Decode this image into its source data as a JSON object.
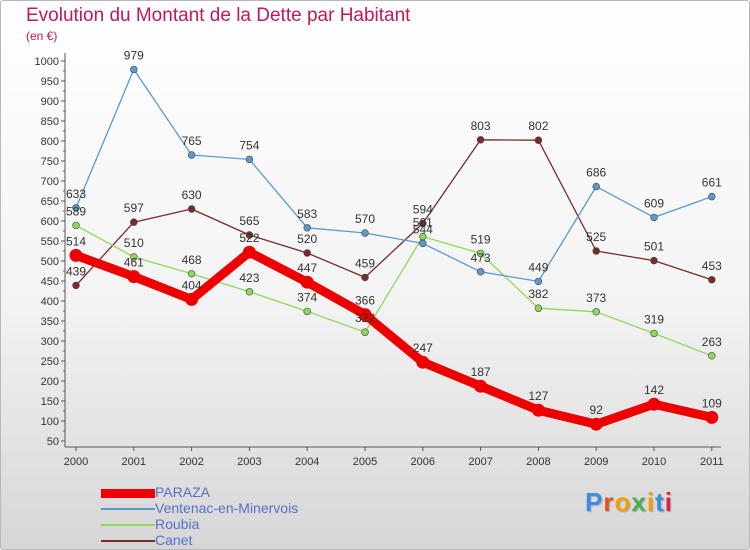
{
  "title": "Evolution du Montant de la Dette par Habitant",
  "unit": "(en €)",
  "logo": "Proxiti",
  "chart_data": {
    "type": "line",
    "title": "Evolution du Montant de la Dette par Habitant",
    "ylabel": "(en €)",
    "ylim": [
      50,
      1000
    ],
    "ytick_step": 50,
    "grid": false,
    "legend_position": "bottom-left",
    "x": [
      "2000",
      "2001",
      "2002",
      "2003",
      "2004",
      "2005",
      "2006",
      "2007",
      "2008",
      "2009",
      "2010",
      "2011"
    ],
    "series": [
      {
        "name": "PARAZA",
        "color": "#ee0000",
        "values": [
          514,
          461,
          404,
          522,
          447,
          366,
          247,
          187,
          127,
          92,
          142,
          109
        ]
      },
      {
        "name": "Ventenac-en-Minervois",
        "color": "#5a9ad0",
        "values": [
          633,
          979,
          765,
          754,
          583,
          570,
          544,
          473,
          449,
          686,
          609,
          661
        ]
      },
      {
        "name": "Roubia",
        "color": "#8ed85a",
        "values": [
          589,
          510,
          468,
          423,
          374,
          322,
          561,
          519,
          382,
          373,
          319,
          263
        ]
      },
      {
        "name": "Canet",
        "color": "#7a2a2a",
        "values": [
          439,
          597,
          630,
          565,
          520,
          459,
          594,
          803,
          802,
          525,
          501,
          453
        ]
      }
    ]
  }
}
